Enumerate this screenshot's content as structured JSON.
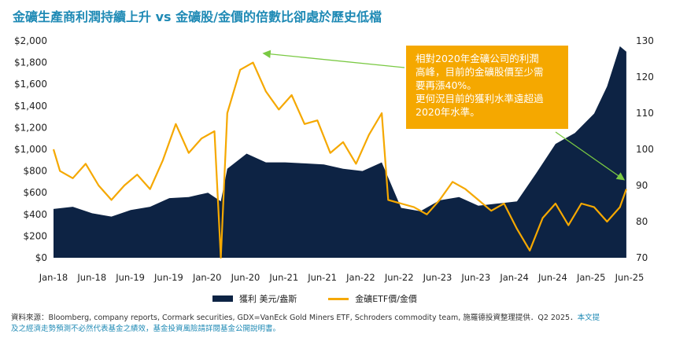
{
  "title": "金礦生產商利潤持續上升 vs 金礦股/金價的倍數比卻處於歷史低檔",
  "callout": {
    "lines": [
      "相對2020年金礦公司的利潤",
      "高峰，目前的金礦股價至少需",
      "要再漲40%。",
      "更何況目前的獲利水準遠超過",
      "2020年水準。"
    ]
  },
  "legend": {
    "area_label": "獲利 美元/盎斯",
    "line_label": "金礦ETF價/金價"
  },
  "footer": {
    "source": "資料來源：Bloomberg, company reports, Cormark securities, GDX=VanEck Gold Miners ETF,  Schroders commodity team, 施羅德投資整理提供．Q2 2025．",
    "disclaimer_part1": "本文提",
    "disclaimer_part2": "及之經濟走勢預測不必然代表基金之績效，基金投資風險請詳閱基金公開說明書。"
  },
  "colors": {
    "area": "#0d2344",
    "line": "#f5a800",
    "title": "#1f8ab5",
    "arrow": "#7ac943"
  },
  "chart_data": {
    "type": "area+line",
    "x_ticks": [
      "Jan-18",
      "Jun-18",
      "Jun-19",
      "Jun-19",
      "Jan-20",
      "Jun-20",
      "Jun-21",
      "Jun-21",
      "Jan-22",
      "Jun-22",
      "Jun-23",
      "Jun-23",
      "Jan-24",
      "Jun-24",
      "Jan-25",
      "Jun-25"
    ],
    "x_range": [
      "2018-01",
      "2025-06"
    ],
    "left_axis": {
      "ticks": [
        "$2,000",
        "$1,800",
        "$1,600",
        "$1,400",
        "$1,200",
        "$1,000",
        "$800",
        "$600",
        "$400",
        "$200",
        "$0"
      ],
      "ylim": [
        0,
        2000
      ]
    },
    "right_axis": {
      "ticks": [
        "130",
        "120",
        "110",
        "100",
        "90",
        "80",
        "70"
      ],
      "ylim": [
        70,
        130
      ]
    },
    "series": [
      {
        "name": "獲利 美元/盎斯",
        "axis": "left",
        "style": "area",
        "x": [
          "2018-01",
          "2018-04",
          "2018-07",
          "2018-10",
          "2019-01",
          "2019-04",
          "2019-07",
          "2019-10",
          "2020-01",
          "2020-03",
          "2020-04",
          "2020-07",
          "2020-10",
          "2021-01",
          "2021-04",
          "2021-07",
          "2021-10",
          "2022-01",
          "2022-04",
          "2022-07",
          "2022-10",
          "2023-01",
          "2023-04",
          "2023-07",
          "2023-10",
          "2024-01",
          "2024-04",
          "2024-07",
          "2024-10",
          "2025-01",
          "2025-03",
          "2025-05",
          "2025-06"
        ],
        "values": [
          450,
          470,
          410,
          380,
          440,
          470,
          550,
          560,
          600,
          520,
          820,
          960,
          880,
          880,
          870,
          860,
          820,
          800,
          880,
          460,
          430,
          530,
          560,
          480,
          500,
          520,
          780,
          1050,
          1150,
          1330,
          1580,
          1950,
          1900
        ]
      },
      {
        "name": "金礦ETF價/金價",
        "axis": "right",
        "style": "line",
        "x": [
          "2018-01",
          "2018-02",
          "2018-04",
          "2018-06",
          "2018-08",
          "2018-10",
          "2018-12",
          "2019-02",
          "2019-04",
          "2019-06",
          "2019-08",
          "2019-10",
          "2019-12",
          "2020-02",
          "2020-03",
          "2020-04",
          "2020-06",
          "2020-08",
          "2020-10",
          "2020-12",
          "2021-02",
          "2021-04",
          "2021-06",
          "2021-08",
          "2021-10",
          "2021-12",
          "2022-02",
          "2022-04",
          "2022-05",
          "2022-07",
          "2022-09",
          "2022-11",
          "2023-01",
          "2023-03",
          "2023-05",
          "2023-07",
          "2023-09",
          "2023-11",
          "2024-01",
          "2024-03",
          "2024-05",
          "2024-07",
          "2024-09",
          "2024-11",
          "2025-01",
          "2025-03",
          "2025-05",
          "2025-06"
        ],
        "values": [
          100,
          94,
          92,
          96,
          90,
          86,
          90,
          93,
          89,
          97,
          107,
          99,
          103,
          105,
          70,
          110,
          122,
          124,
          116,
          111,
          115,
          107,
          108,
          99,
          102,
          96,
          104,
          110,
          86,
          85,
          84,
          82,
          86,
          91,
          89,
          86,
          83,
          85,
          78,
          72,
          81,
          85,
          79,
          85,
          84,
          80,
          84,
          89
        ]
      }
    ],
    "annotations": [
      {
        "type": "arrow",
        "target": "2020-07 ETF peak"
      },
      {
        "type": "arrow",
        "target": "2025-06 ETF/gold level"
      }
    ]
  }
}
